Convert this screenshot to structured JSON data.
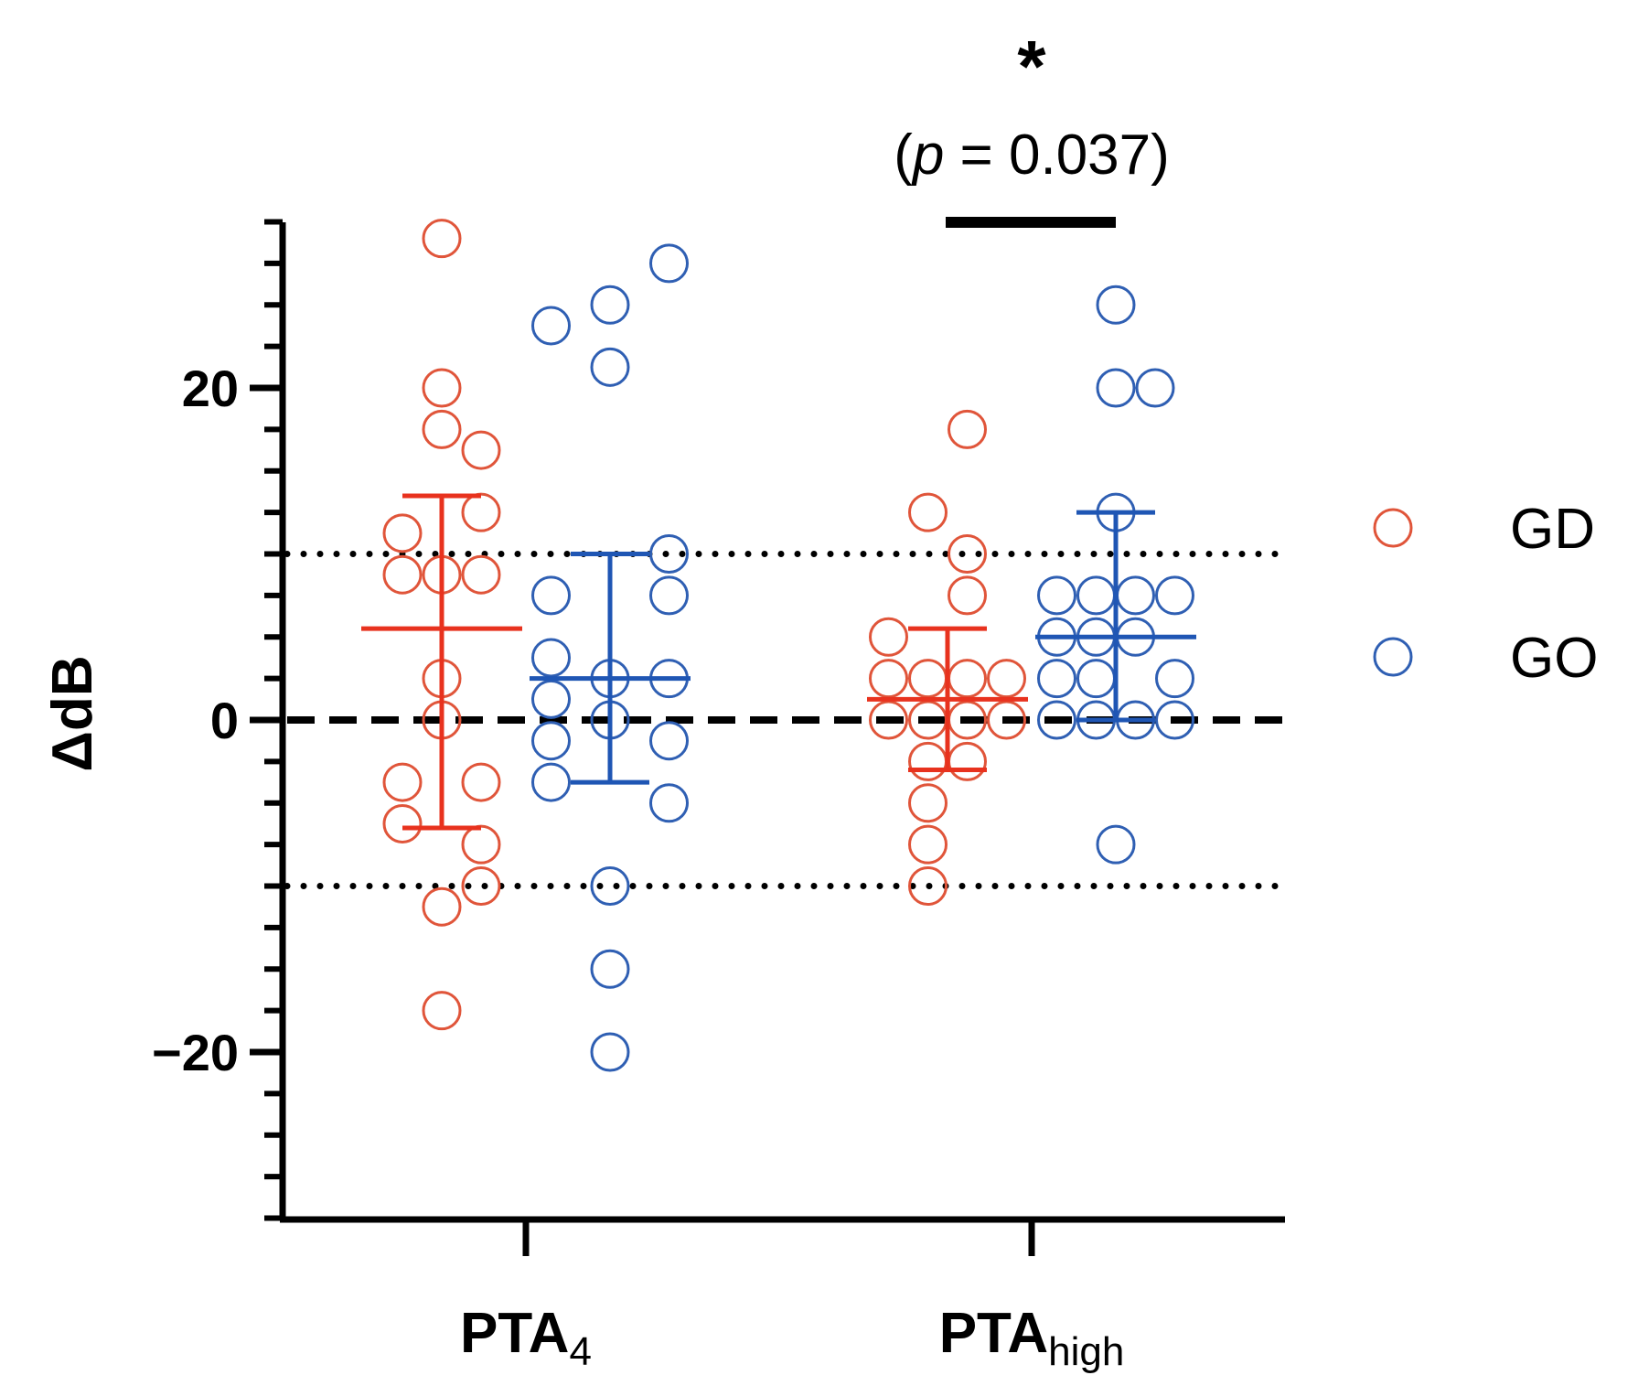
{
  "chart_data": {
    "type": "scatter",
    "ylabel": "ΔdB",
    "ylim": [
      -30,
      30
    ],
    "yticks_major": [
      -20,
      0,
      20
    ],
    "ytick_labels": [
      "−20",
      "0",
      "20"
    ],
    "yticks_minor_step": 2.5,
    "categories": [
      {
        "key": "pta4",
        "label": "PTA",
        "subscript": "4"
      },
      {
        "key": "ptahigh",
        "label": "PTA",
        "subscript": "high"
      }
    ],
    "reference_lines": [
      {
        "y": 0,
        "style": "dashed"
      },
      {
        "y": 10,
        "style": "dotted"
      },
      {
        "y": -10,
        "style": "dotted"
      }
    ],
    "series": [
      {
        "name": "GD",
        "color": "#e0553a",
        "summary_color": "#e8321e",
        "groups": [
          {
            "category": "pta4",
            "mean": 5.5,
            "sd_upper": 13.5,
            "sd_lower": -6.5,
            "points": [
              {
                "slot": 0,
                "y": 29.0
              },
              {
                "slot": 0,
                "y": 20.0
              },
              {
                "slot": 0,
                "y": 17.5
              },
              {
                "slot": 1,
                "y": 16.25
              },
              {
                "slot": 1,
                "y": 12.5
              },
              {
                "slot": -1,
                "y": 11.25
              },
              {
                "slot": -1,
                "y": 8.75
              },
              {
                "slot": 0,
                "y": 8.75
              },
              {
                "slot": 1,
                "y": 8.75
              },
              {
                "slot": 0,
                "y": 2.5
              },
              {
                "slot": 0,
                "y": 0.0
              },
              {
                "slot": -1,
                "y": -3.75
              },
              {
                "slot": 1,
                "y": -3.75
              },
              {
                "slot": -1,
                "y": -6.25
              },
              {
                "slot": 1,
                "y": -7.5
              },
              {
                "slot": 1,
                "y": -10.0
              },
              {
                "slot": 0,
                "y": -11.25
              },
              {
                "slot": 0,
                "y": -17.5
              }
            ]
          },
          {
            "category": "ptahigh",
            "mean": 1.25,
            "sd_upper": 5.5,
            "sd_lower": -3.0,
            "points": [
              {
                "slot": 0.5,
                "y": 17.5
              },
              {
                "slot": -0.5,
                "y": 12.5
              },
              {
                "slot": 0.5,
                "y": 10.0
              },
              {
                "slot": 0.5,
                "y": 7.5
              },
              {
                "slot": -1.5,
                "y": 5.0
              },
              {
                "slot": -1.5,
                "y": 2.5
              },
              {
                "slot": -0.5,
                "y": 2.5
              },
              {
                "slot": 0.5,
                "y": 2.5
              },
              {
                "slot": 1.5,
                "y": 2.5
              },
              {
                "slot": -1.5,
                "y": 0.0
              },
              {
                "slot": -0.5,
                "y": 0.0
              },
              {
                "slot": 0.5,
                "y": 0.0
              },
              {
                "slot": 1.5,
                "y": 0.0
              },
              {
                "slot": -0.5,
                "y": -2.5
              },
              {
                "slot": 0.5,
                "y": -2.5
              },
              {
                "slot": -0.5,
                "y": -5.0
              },
              {
                "slot": -0.5,
                "y": -7.5
              },
              {
                "slot": -0.5,
                "y": -10.0
              }
            ]
          }
        ]
      },
      {
        "name": "GO",
        "color": "#2f5fb3",
        "summary_color": "#1f56b4",
        "groups": [
          {
            "category": "pta4",
            "mean": 2.5,
            "sd_upper": 10.0,
            "sd_lower": -3.75,
            "points": [
              {
                "slot": 1.5,
                "y": 27.5
              },
              {
                "slot": 0,
                "y": 25.0
              },
              {
                "slot": -1.5,
                "y": 23.75
              },
              {
                "slot": 0,
                "y": 21.25
              },
              {
                "slot": 1.5,
                "y": 10.0
              },
              {
                "slot": -1.5,
                "y": 7.5
              },
              {
                "slot": 1.5,
                "y": 7.5
              },
              {
                "slot": -1.5,
                "y": 3.75
              },
              {
                "slot": 0,
                "y": 2.5
              },
              {
                "slot": 1.5,
                "y": 2.5
              },
              {
                "slot": -1.5,
                "y": 1.25
              },
              {
                "slot": 0,
                "y": 0.0
              },
              {
                "slot": -1.5,
                "y": -1.25
              },
              {
                "slot": 1.5,
                "y": -1.25
              },
              {
                "slot": -1.5,
                "y": -3.75
              },
              {
                "slot": 1.5,
                "y": -5.0
              },
              {
                "slot": 0,
                "y": -10.0
              },
              {
                "slot": 0,
                "y": -15.0
              },
              {
                "slot": 0,
                "y": -20.0
              }
            ]
          },
          {
            "category": "ptahigh",
            "mean": 5.0,
            "sd_upper": 12.5,
            "sd_lower": 0.0,
            "points": [
              {
                "slot": 0,
                "y": 25.0
              },
              {
                "slot": 0,
                "y": 20.0
              },
              {
                "slot": 1,
                "y": 20.0
              },
              {
                "slot": 0,
                "y": 12.5
              },
              {
                "slot": -1.5,
                "y": 7.5
              },
              {
                "slot": -0.5,
                "y": 7.5
              },
              {
                "slot": 0.5,
                "y": 7.5
              },
              {
                "slot": 1.5,
                "y": 7.5
              },
              {
                "slot": -1.5,
                "y": 5.0
              },
              {
                "slot": -0.5,
                "y": 5.0
              },
              {
                "slot": 0.5,
                "y": 5.0
              },
              {
                "slot": -1.5,
                "y": 2.5
              },
              {
                "slot": -0.5,
                "y": 2.5
              },
              {
                "slot": 1.5,
                "y": 2.5
              },
              {
                "slot": -1.5,
                "y": 0.0
              },
              {
                "slot": -0.5,
                "y": 0.0
              },
              {
                "slot": 0.5,
                "y": 0.0
              },
              {
                "slot": 1.5,
                "y": 0.0
              },
              {
                "slot": 0,
                "y": -7.5
              }
            ]
          }
        ]
      }
    ],
    "significance": {
      "category": "ptahigh",
      "star": "*",
      "p_open": "(",
      "p_italic": "p",
      "p_rest": " = 0.037)"
    },
    "legend": {
      "position": "right",
      "entries": [
        "GD",
        "GO"
      ]
    }
  }
}
